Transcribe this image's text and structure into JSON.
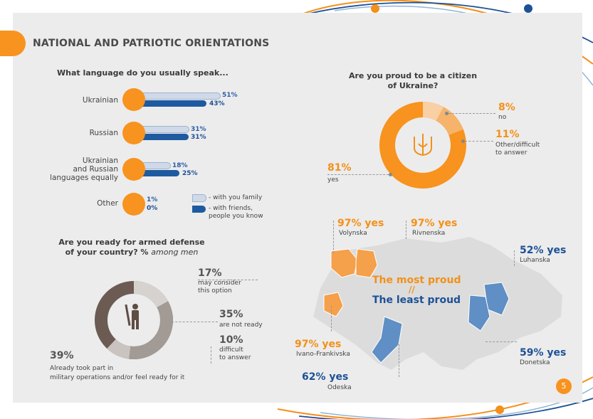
{
  "header": {
    "title": "NATIONAL AND PATRIOTIC ORIENTATIONS"
  },
  "language": {
    "question": "What language do you usually speak...",
    "rows": [
      {
        "label": "Ukrainian",
        "family": "51%",
        "friends": "43%",
        "family_value": 51,
        "friends_value": 43
      },
      {
        "label": "Russian",
        "family": "31%",
        "friends": "31%",
        "family_value": 31,
        "friends_value": 31
      },
      {
        "label": "Ukrainian\nand Russian\nlanguages equally",
        "family": "18%",
        "friends": "25%",
        "family_value": 18,
        "friends_value": 25
      },
      {
        "label": "Other",
        "family": "1%",
        "friends": "0%",
        "family_value": 1,
        "friends_value": 0
      }
    ],
    "legend": {
      "family": "- with you family",
      "friends": "- with friends,\npeople you know"
    }
  },
  "proud": {
    "question": "Are you proud to be a citizen\nof Ukraine?",
    "segments": [
      {
        "pct": "8%",
        "label": "no",
        "value": 8
      },
      {
        "pct": "11%",
        "label": "Other/difficult\nto answer",
        "value": 11
      },
      {
        "pct": "81%",
        "label": "yes",
        "value": 81
      }
    ],
    "colors": {
      "yes": "#f7931e",
      "no": "#f9c99c",
      "other": "#f5b067"
    }
  },
  "armed": {
    "question_main": "Are you ready for armed defense\nof your country? %",
    "question_italic": "among men",
    "segments": [
      {
        "pct": "17%",
        "label": "may consider\nthis option",
        "value": 17
      },
      {
        "pct": "35%",
        "label": "are not ready",
        "value": 35
      },
      {
        "pct": "10%",
        "label": "difficult\nto answer",
        "value": 10
      },
      {
        "pct": "39%",
        "label": "Already took part in\nmilitary operations and/or feel ready for it",
        "value": 39
      }
    ]
  },
  "map": {
    "center_top": "The most proud",
    "center_sep": "//",
    "center_bottom": "The least proud",
    "regions": [
      {
        "pct": "97% yes",
        "name": "Volynska"
      },
      {
        "pct": "97% yes",
        "name": "Rivnenska"
      },
      {
        "pct": "97% yes",
        "name": "Ivano-Frankivska"
      },
      {
        "pct": "52% yes",
        "name": "Luhanska"
      },
      {
        "pct": "59% yes",
        "name": "Donetska"
      },
      {
        "pct": "62% yes",
        "name": "Odeska"
      }
    ]
  },
  "page_number": "5"
}
